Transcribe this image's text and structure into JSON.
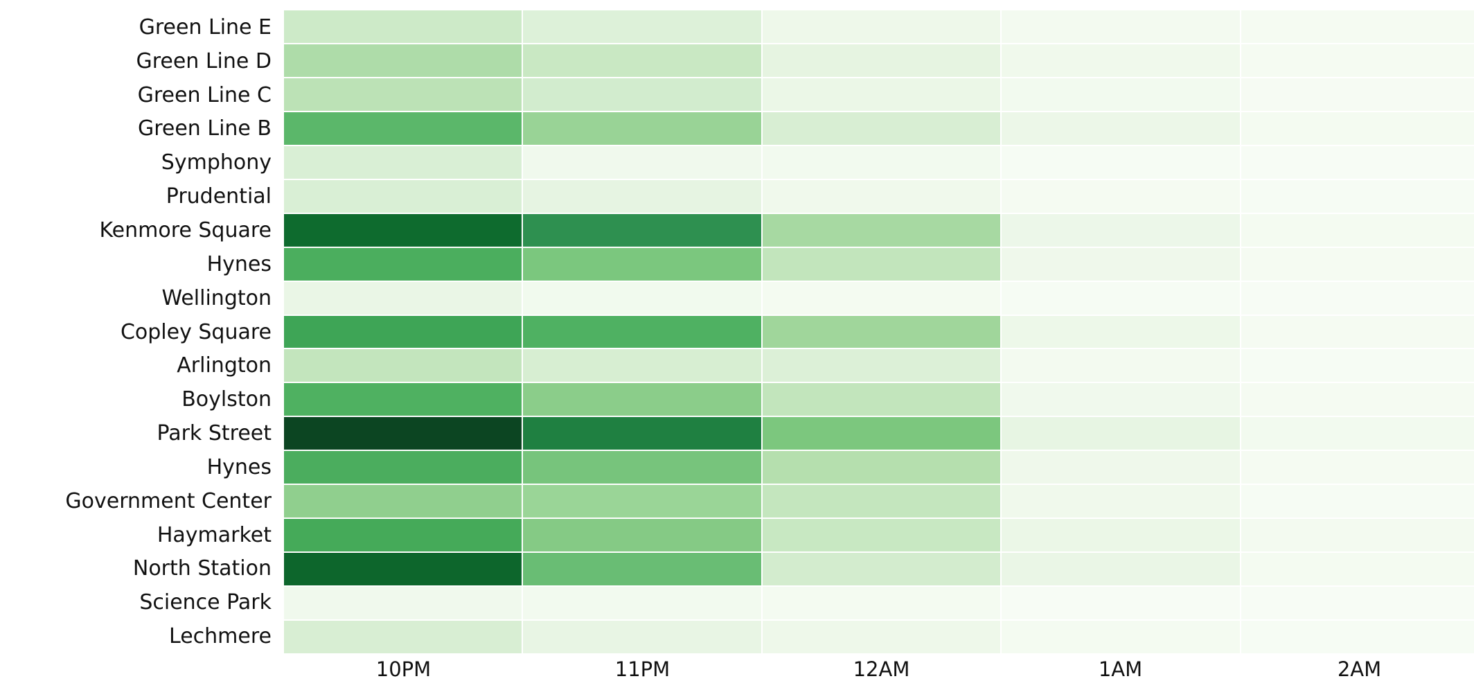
{
  "chart_data": {
    "type": "heatmap",
    "title": "",
    "xlabel": "",
    "ylabel": "",
    "colormap": "Greens",
    "legend": "none",
    "grid": "off",
    "x_categories": [
      "10PM",
      "11PM",
      "12AM",
      "1AM",
      "2AM"
    ],
    "y_categories": [
      "Green Line E",
      "Green Line D",
      "Green Line C",
      "Green Line B",
      "Symphony",
      "Prudential",
      "Kenmore Square",
      "Hynes",
      "Wellington",
      "Copley Square",
      "Arlington",
      "Boylston",
      "Park Street",
      "Hynes",
      "Government Center",
      "Haymarket",
      "North Station",
      "Science Park",
      "Lechmere"
    ],
    "value_scale": "normalized color intensity 0-1 (no colorbar shown)",
    "rows": [
      {
        "label": "Green Line E",
        "values": [
          0.21,
          0.15,
          0.06,
          0.03,
          0.02
        ],
        "colors": [
          "#cdeac8",
          "#ddf1d9",
          "#eef8ea",
          "#f3faf0",
          "#f5fbf2"
        ]
      },
      {
        "label": "Green Line D",
        "values": [
          0.32,
          0.22,
          0.1,
          0.04,
          0.02
        ],
        "colors": [
          "#aedca9",
          "#c9e8c3",
          "#e6f4e1",
          "#f0f9ec",
          "#f5fbf2"
        ]
      },
      {
        "label": "Green Line C",
        "values": [
          0.27,
          0.18,
          0.07,
          0.03,
          0.015
        ],
        "colors": [
          "#bce2b6",
          "#d2ecce",
          "#ebf7e7",
          "#f2faef",
          "#f6fbf3"
        ]
      },
      {
        "label": "Green Line B",
        "values": [
          0.57,
          0.41,
          0.16,
          0.065,
          0.025
        ],
        "colors": [
          "#5bb76a",
          "#99d396",
          "#d8eed3",
          "#ecf7e8",
          "#f4fbf1"
        ]
      },
      {
        "label": "Symphony",
        "values": [
          0.155,
          0.04,
          0.03,
          0.01,
          0.005
        ],
        "colors": [
          "#d9efd5",
          "#f0f9ed",
          "#f2faef",
          "#f6fcf4",
          "#f7fcf5"
        ]
      },
      {
        "label": "Prudential",
        "values": [
          0.155,
          0.1,
          0.04,
          0.02,
          0.01
        ],
        "colors": [
          "#d9efd5",
          "#e6f4e2",
          "#f0f9ec",
          "#f5fbf2",
          "#f6fcf4"
        ]
      },
      {
        "label": "Kenmore Square",
        "values": [
          0.87,
          0.71,
          0.345,
          0.06,
          0.025
        ],
        "colors": [
          "#0e6b2e",
          "#2e9050",
          "#a7d9a2",
          "#ecf7e9",
          "#f4fbf1"
        ]
      },
      {
        "label": "Hynes",
        "values": [
          0.6,
          0.48,
          0.25,
          0.05,
          0.02
        ],
        "colors": [
          "#4bae5e",
          "#7bc77e",
          "#c2e5bc",
          "#eff8eb",
          "#f5fbf2"
        ]
      },
      {
        "label": "Wellington",
        "values": [
          0.07,
          0.035,
          0.025,
          0.01,
          0.005
        ],
        "colors": [
          "#eaf6e6",
          "#f1faee",
          "#f4fbf1",
          "#f6fcf4",
          "#f7fcf5"
        ]
      },
      {
        "label": "Copley Square",
        "values": [
          0.645,
          0.585,
          0.37,
          0.055,
          0.02
        ],
        "colors": [
          "#3ea556",
          "#4fb162",
          "#a0d69b",
          "#edf8e9",
          "#f5fbf2"
        ]
      },
      {
        "label": "Arlington",
        "values": [
          0.245,
          0.165,
          0.135,
          0.03,
          0.01
        ],
        "colors": [
          "#c3e5bd",
          "#d7eed2",
          "#dcf0d7",
          "#f3faf0",
          "#f6fcf4"
        ]
      },
      {
        "label": "Boylston",
        "values": [
          0.585,
          0.45,
          0.25,
          0.04,
          0.02
        ],
        "colors": [
          "#4fb161",
          "#8bcd8a",
          "#c2e5bc",
          "#f0f9ed",
          "#f5fbf2"
        ]
      },
      {
        "label": "Park Street",
        "values": [
          0.97,
          0.78,
          0.48,
          0.095,
          0.03
        ],
        "colors": [
          "#0c4522",
          "#1f8041",
          "#7cc77e",
          "#e7f5e3",
          "#f2faef"
        ]
      },
      {
        "label": "Hynes",
        "values": [
          0.6,
          0.49,
          0.3,
          0.05,
          0.02
        ],
        "colors": [
          "#4bad5e",
          "#77c47c",
          "#b5dfae",
          "#eff8eb",
          "#f5fbf2"
        ]
      },
      {
        "label": "Government Center",
        "values": [
          0.435,
          0.4,
          0.24,
          0.04,
          0.01
        ],
        "colors": [
          "#90cf8e",
          "#9ad597",
          "#c4e6be",
          "#f0f9ec",
          "#f6fcf4"
        ]
      },
      {
        "label": "Haymarket",
        "values": [
          0.62,
          0.465,
          0.23,
          0.07,
          0.03
        ],
        "colors": [
          "#45aa59",
          "#85ca85",
          "#c8e8c2",
          "#ebf7e7",
          "#f3faf0"
        ]
      },
      {
        "label": "North Station",
        "values": [
          0.88,
          0.53,
          0.175,
          0.075,
          0.025
        ],
        "colors": [
          "#0d662c",
          "#69bd74",
          "#d3ecce",
          "#eaf6e6",
          "#f4fbf1"
        ]
      },
      {
        "label": "Science Park",
        "values": [
          0.04,
          0.03,
          0.02,
          0.005,
          0.005
        ],
        "colors": [
          "#f0f9ed",
          "#f2faef",
          "#f4fbf1",
          "#f7fcf5",
          "#f7fcf5"
        ]
      },
      {
        "label": "Lechmere",
        "values": [
          0.16,
          0.085,
          0.055,
          0.025,
          0.01
        ],
        "colors": [
          "#d8eed3",
          "#e8f5e4",
          "#eef8ea",
          "#f4fbf1",
          "#f6fcf4"
        ]
      }
    ],
    "axis_text_color": "#111111",
    "background_color": "#ffffff"
  }
}
